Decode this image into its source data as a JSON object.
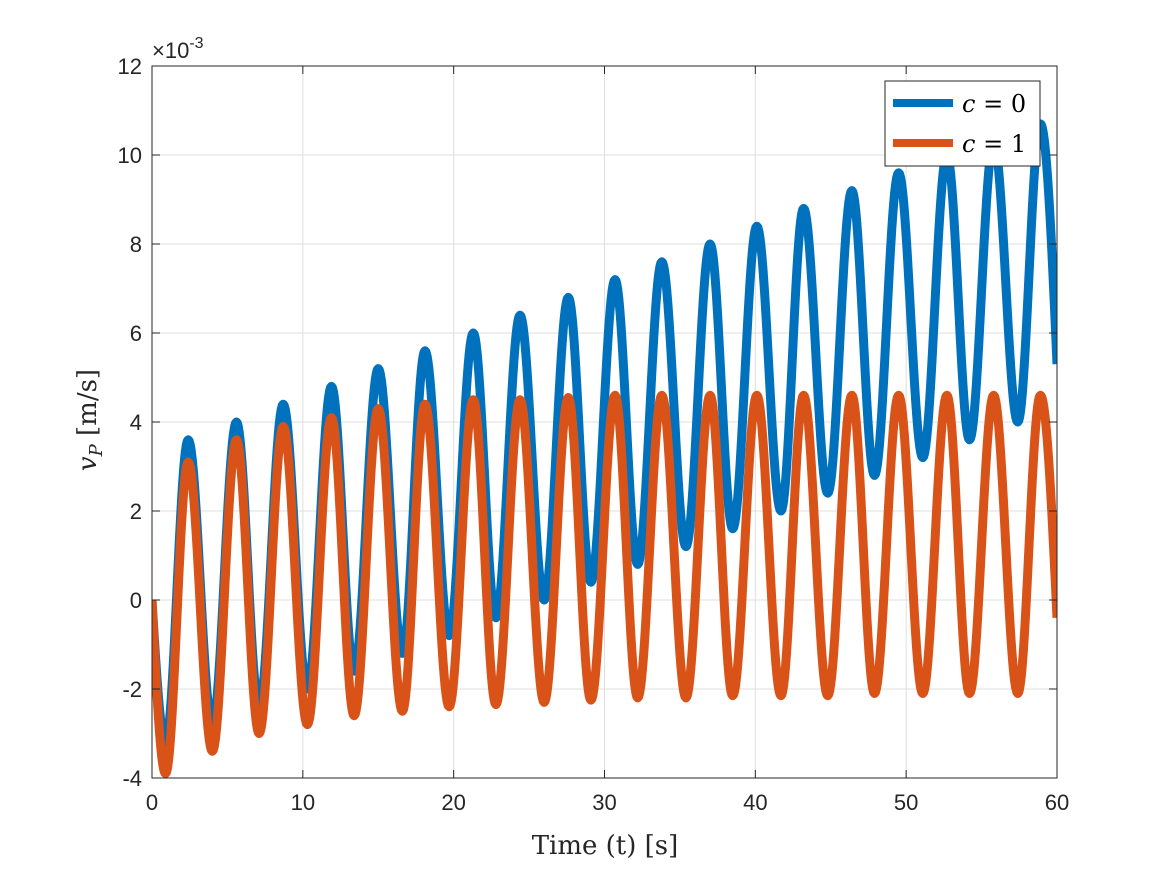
{
  "chart_data": {
    "type": "line",
    "title": "",
    "xlabel": "Time (t) [s]",
    "ylabel": "v_P [m/s]",
    "ylabel_main": "v",
    "ylabel_sub": "P",
    "ylabel_unit": " [m/s]",
    "y_exponent_prefix": "×10",
    "y_exponent": "-3",
    "xlim": [
      0,
      60
    ],
    "ylim": [
      -4,
      12
    ],
    "xticks": [
      0,
      10,
      20,
      30,
      40,
      50,
      60
    ],
    "yticks": [
      -4,
      -2,
      0,
      2,
      4,
      6,
      8,
      10,
      12
    ],
    "grid": true,
    "legend_position": "top-right",
    "series": [
      {
        "name": "c = 0",
        "legend_var": "c",
        "legend_val": "0",
        "color": "#0072BD",
        "peaks": [
          [
            2.4,
            3.6
          ],
          [
            5.6,
            4.0
          ],
          [
            8.7,
            4.4
          ],
          [
            11.9,
            4.8
          ],
          [
            15.0,
            5.2
          ],
          [
            18.1,
            5.6
          ],
          [
            21.3,
            6.0
          ],
          [
            24.4,
            6.4
          ],
          [
            27.6,
            6.8
          ],
          [
            30.7,
            7.2
          ],
          [
            33.8,
            7.6
          ],
          [
            37.0,
            8.0
          ],
          [
            40.1,
            8.4
          ],
          [
            43.2,
            8.8
          ],
          [
            46.4,
            9.2
          ],
          [
            49.5,
            9.6
          ],
          [
            52.7,
            10.0
          ],
          [
            55.8,
            10.3
          ],
          [
            58.9,
            10.7
          ]
        ],
        "troughs": [
          [
            0.9,
            -3.2
          ],
          [
            4.0,
            -2.8
          ],
          [
            7.1,
            -2.4
          ],
          [
            10.3,
            -2.0
          ],
          [
            13.4,
            -1.6
          ],
          [
            16.6,
            -1.2
          ],
          [
            19.7,
            -0.8
          ],
          [
            22.8,
            -0.4
          ],
          [
            26.0,
            0.0
          ],
          [
            29.1,
            0.4
          ],
          [
            32.2,
            0.8
          ],
          [
            35.4,
            1.2
          ],
          [
            38.5,
            1.6
          ],
          [
            41.7,
            2.0
          ],
          [
            44.8,
            2.4
          ],
          [
            47.9,
            2.8
          ],
          [
            51.1,
            3.2
          ],
          [
            54.2,
            3.6
          ],
          [
            57.4,
            4.0
          ]
        ],
        "start": [
          0,
          0
        ],
        "end": [
          60,
          5.3
        ]
      },
      {
        "name": "c = 1",
        "legend_var": "c",
        "legend_val": "1",
        "color": "#D95319",
        "peaks": [
          [
            2.4,
            3.1
          ],
          [
            5.6,
            3.6
          ],
          [
            8.7,
            3.9
          ],
          [
            11.9,
            4.1
          ],
          [
            15.0,
            4.3
          ],
          [
            18.1,
            4.4
          ],
          [
            21.3,
            4.5
          ],
          [
            24.4,
            4.5
          ],
          [
            27.6,
            4.55
          ],
          [
            30.7,
            4.6
          ],
          [
            33.8,
            4.6
          ],
          [
            37.0,
            4.6
          ],
          [
            40.1,
            4.6
          ],
          [
            43.2,
            4.6
          ],
          [
            46.4,
            4.6
          ],
          [
            49.5,
            4.6
          ],
          [
            52.7,
            4.6
          ],
          [
            55.8,
            4.6
          ],
          [
            58.9,
            4.6
          ]
        ],
        "troughs": [
          [
            0.9,
            -3.9
          ],
          [
            4.0,
            -3.4
          ],
          [
            7.1,
            -3.0
          ],
          [
            10.3,
            -2.8
          ],
          [
            13.4,
            -2.6
          ],
          [
            16.6,
            -2.5
          ],
          [
            19.7,
            -2.4
          ],
          [
            22.8,
            -2.35
          ],
          [
            26.0,
            -2.3
          ],
          [
            29.1,
            -2.25
          ],
          [
            32.2,
            -2.2
          ],
          [
            35.4,
            -2.2
          ],
          [
            38.5,
            -2.15
          ],
          [
            41.7,
            -2.15
          ],
          [
            44.8,
            -2.15
          ],
          [
            47.9,
            -2.1
          ],
          [
            51.1,
            -2.1
          ],
          [
            54.2,
            -2.1
          ],
          [
            57.4,
            -2.1
          ]
        ],
        "start": [
          0,
          0
        ],
        "end": [
          60,
          -0.4
        ]
      }
    ]
  }
}
